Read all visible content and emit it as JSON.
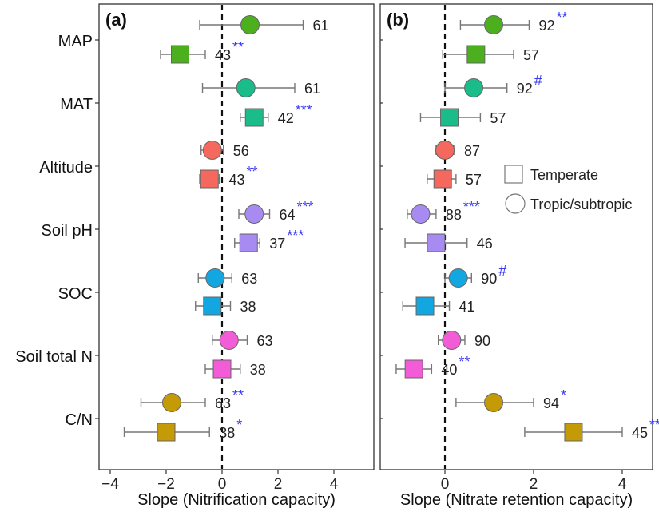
{
  "chart_data": [
    {
      "type": "forest",
      "panel_label": "(a)",
      "xlabel": "Slope (Nitrification capacity)",
      "xlim": [
        -4.2,
        4.8
      ],
      "xticks": [
        -4,
        -2,
        0,
        2,
        4
      ],
      "xtick_labels": [
        "−4",
        "−2",
        "0",
        "2",
        "4"
      ],
      "points": [
        {
          "row": "MAP",
          "group": "Tropic/subtropic",
          "x": 1.0,
          "lo": -0.8,
          "hi": 2.9,
          "n": "61",
          "sig": ""
        },
        {
          "row": "MAP",
          "group": "Temperate",
          "x": -1.5,
          "lo": -2.2,
          "hi": -0.6,
          "n": "43",
          "sig": "**"
        },
        {
          "row": "MAT",
          "group": "Tropic/subtropic",
          "x": 0.85,
          "lo": -0.7,
          "hi": 2.6,
          "n": "61",
          "sig": ""
        },
        {
          "row": "MAT",
          "group": "Temperate",
          "x": 1.15,
          "lo": 0.65,
          "hi": 1.65,
          "n": "42",
          "sig": "***"
        },
        {
          "row": "Altitude",
          "group": "Tropic/subtropic",
          "x": -0.35,
          "lo": -0.75,
          "hi": 0.05,
          "n": "56",
          "sig": ""
        },
        {
          "row": "Altitude",
          "group": "Temperate",
          "x": -0.45,
          "lo": -0.8,
          "hi": -0.1,
          "n": "43",
          "sig": "**"
        },
        {
          "row": "Soil pH",
          "group": "Tropic/subtropic",
          "x": 1.15,
          "lo": 0.6,
          "hi": 1.7,
          "n": "64",
          "sig": "***"
        },
        {
          "row": "Soil pH",
          "group": "Temperate",
          "x": 0.95,
          "lo": 0.45,
          "hi": 1.35,
          "n": "37",
          "sig": "***"
        },
        {
          "row": "SOC",
          "group": "Tropic/subtropic",
          "x": -0.25,
          "lo": -0.85,
          "hi": 0.35,
          "n": "63",
          "sig": ""
        },
        {
          "row": "SOC",
          "group": "Temperate",
          "x": -0.35,
          "lo": -0.95,
          "hi": 0.3,
          "n": "38",
          "sig": ""
        },
        {
          "row": "Soil total N",
          "group": "Tropic/subtropic",
          "x": 0.25,
          "lo": -0.35,
          "hi": 0.9,
          "n": "63",
          "sig": ""
        },
        {
          "row": "Soil total N",
          "group": "Temperate",
          "x": 0.0,
          "lo": -0.6,
          "hi": 0.65,
          "n": "38",
          "sig": ""
        },
        {
          "row": "C/N",
          "group": "Tropic/subtropic",
          "x": -1.8,
          "lo": -2.9,
          "hi": -0.6,
          "n": "63",
          "sig": "**"
        },
        {
          "row": "C/N",
          "group": "Temperate",
          "x": -2.0,
          "lo": -3.5,
          "hi": -0.45,
          "n": "38",
          "sig": "*"
        }
      ]
    },
    {
      "type": "forest",
      "panel_label": "(b)",
      "xlabel": "Slope (Nitrate retention capacity)",
      "xlim": [
        -1.5,
        4.8
      ],
      "xticks": [
        0,
        2,
        4
      ],
      "xtick_labels": [
        "0",
        "2",
        "4"
      ],
      "points": [
        {
          "row": "MAP",
          "group": "Tropic/subtropic",
          "x": 1.1,
          "lo": 0.35,
          "hi": 1.9,
          "n": "92",
          "sig": "**"
        },
        {
          "row": "MAP",
          "group": "Temperate",
          "x": 0.7,
          "lo": -0.05,
          "hi": 1.55,
          "n": "57",
          "sig": ""
        },
        {
          "row": "MAT",
          "group": "Tropic/subtropic",
          "x": 0.65,
          "lo": 0.0,
          "hi": 1.4,
          "n": "92",
          "sig": "#"
        },
        {
          "row": "MAT",
          "group": "Temperate",
          "x": 0.1,
          "lo": -0.55,
          "hi": 0.8,
          "n": "57",
          "sig": ""
        },
        {
          "row": "Altitude",
          "group": "Tropic/subtropic",
          "x": 0.0,
          "lo": -0.2,
          "hi": 0.2,
          "n": "87",
          "sig": ""
        },
        {
          "row": "Altitude",
          "group": "Temperate",
          "x": -0.05,
          "lo": -0.4,
          "hi": 0.25,
          "n": "57",
          "sig": ""
        },
        {
          "row": "Soil pH",
          "group": "Tropic/subtropic",
          "x": -0.55,
          "lo": -0.85,
          "hi": -0.2,
          "n": "88",
          "sig": "***"
        },
        {
          "row": "Soil pH",
          "group": "Temperate",
          "x": -0.2,
          "lo": -0.9,
          "hi": 0.5,
          "n": "46",
          "sig": ""
        },
        {
          "row": "SOC",
          "group": "Tropic/subtropic",
          "x": 0.3,
          "lo": 0.0,
          "hi": 0.6,
          "n": "90",
          "sig": "#"
        },
        {
          "row": "SOC",
          "group": "Temperate",
          "x": -0.45,
          "lo": -0.95,
          "hi": 0.1,
          "n": "41",
          "sig": ""
        },
        {
          "row": "Soil total N",
          "group": "Tropic/subtropic",
          "x": 0.15,
          "lo": -0.15,
          "hi": 0.45,
          "n": "90",
          "sig": ""
        },
        {
          "row": "Soil total N",
          "group": "Temperate",
          "x": -0.7,
          "lo": -1.1,
          "hi": -0.3,
          "n": "40",
          "sig": "**"
        },
        {
          "row": "C/N",
          "group": "Tropic/subtropic",
          "x": 1.1,
          "lo": 0.25,
          "hi": 2.0,
          "n": "94",
          "sig": "*"
        },
        {
          "row": "C/N",
          "group": "Temperate",
          "x": 2.9,
          "lo": 1.8,
          "hi": 4.0,
          "n": "45",
          "sig": "***"
        }
      ]
    }
  ],
  "rows": [
    "MAP",
    "MAT",
    "Altitude",
    "Soil pH",
    "SOC",
    "Soil total N",
    "C/N"
  ],
  "row_colors": {
    "MAP": "#4caf1e",
    "MAT": "#1abc8a",
    "Altitude": "#f4685e",
    "Soil pH": "#a88bf2",
    "SOC": "#12a7e0",
    "Soil total N": "#f25cd6",
    "C/N": "#c49a06"
  },
  "significance_color": "#3b3bf5",
  "legend": {
    "position": "inside panel (b), right",
    "items": [
      {
        "label": "Temperate",
        "shape": "square"
      },
      {
        "label": "Tropic/subtropic",
        "shape": "circle"
      }
    ]
  }
}
